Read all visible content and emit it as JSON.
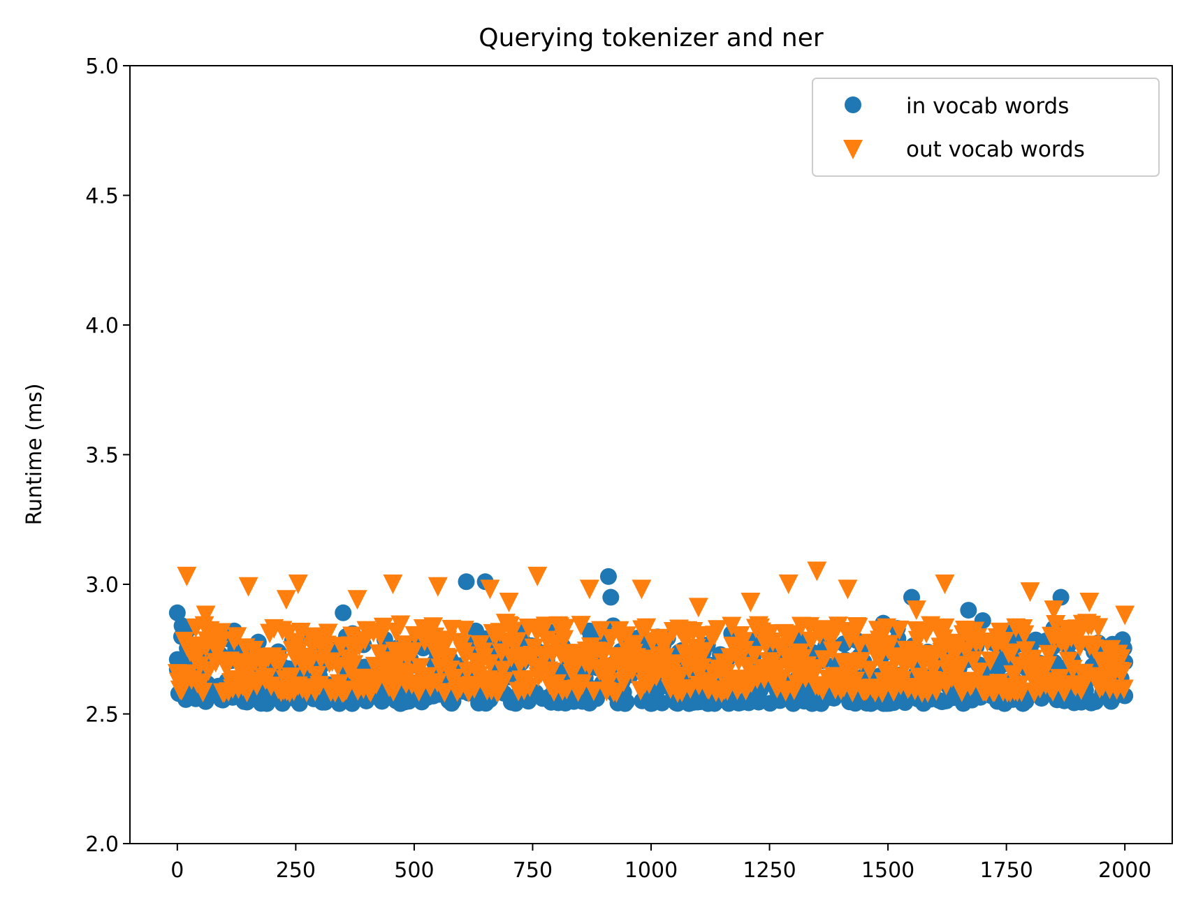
{
  "chart_data": {
    "type": "scatter",
    "title": "Querying tokenizer and ner",
    "xlabel": "",
    "ylabel": "Runtime (ms)",
    "xlim": [
      -100,
      2100
    ],
    "ylim": [
      2.0,
      5.0
    ],
    "xticks": [
      0,
      250,
      500,
      750,
      1000,
      1250,
      1500,
      1750,
      2000
    ],
    "xtick_labels": [
      "0",
      "250",
      "500",
      "750",
      "1000",
      "1250",
      "1500",
      "1750",
      "2000"
    ],
    "yticks": [
      2.0,
      2.5,
      3.0,
      3.5,
      4.0,
      4.5,
      5.0
    ],
    "ytick_labels": [
      "2.0",
      "2.5",
      "3.0",
      "3.5",
      "4.0",
      "4.5",
      "5.0"
    ],
    "grid": false,
    "legend": {
      "position": "top-right",
      "entries": [
        {
          "label": "in vocab words",
          "marker": "circle",
          "color": "#1f77b4"
        },
        {
          "label": "out vocab words",
          "marker": "triangle-down",
          "color": "#ff7f0e"
        }
      ]
    },
    "series": [
      {
        "name": "in vocab words",
        "marker": "circle",
        "color": "#1f77b4",
        "x_range": [
          0,
          2000
        ],
        "typical_range": [
          2.54,
          2.8
        ],
        "points": [
          [
            0,
            2.89
          ],
          [
            0,
            2.71
          ],
          [
            10,
            2.84
          ],
          [
            20,
            2.82
          ],
          [
            50,
            2.57
          ],
          [
            120,
            2.82
          ],
          [
            350,
            2.89
          ],
          [
            370,
            2.81
          ],
          [
            610,
            3.01
          ],
          [
            650,
            3.01
          ],
          [
            630,
            2.82
          ],
          [
            720,
            2.82
          ],
          [
            800,
            2.82
          ],
          [
            870,
            2.82
          ],
          [
            910,
            3.03
          ],
          [
            915,
            2.95
          ],
          [
            920,
            2.84
          ],
          [
            1000,
            2.54
          ],
          [
            1080,
            2.54
          ],
          [
            1120,
            2.54
          ],
          [
            1170,
            2.81
          ],
          [
            1300,
            2.54
          ],
          [
            1340,
            2.54
          ],
          [
            1490,
            2.85
          ],
          [
            1520,
            2.83
          ],
          [
            1550,
            2.95
          ],
          [
            1670,
            2.9
          ],
          [
            1700,
            2.86
          ],
          [
            1765,
            2.83
          ],
          [
            1865,
            2.95
          ],
          [
            1850,
            2.83
          ],
          [
            2000,
            2.57
          ],
          [
            2000,
            2.7
          ]
        ]
      },
      {
        "name": "out vocab words",
        "marker": "triangle-down",
        "color": "#ff7f0e",
        "x_range": [
          0,
          2000
        ],
        "typical_range": [
          2.58,
          2.85
        ],
        "points": [
          [
            20,
            3.03
          ],
          [
            150,
            2.99
          ],
          [
            255,
            3.0
          ],
          [
            455,
            3.0
          ],
          [
            550,
            2.99
          ],
          [
            660,
            2.98
          ],
          [
            760,
            3.03
          ],
          [
            870,
            2.98
          ],
          [
            980,
            2.98
          ],
          [
            1290,
            3.0
          ],
          [
            1350,
            3.05
          ],
          [
            1415,
            2.98
          ],
          [
            1620,
            3.0
          ],
          [
            1800,
            2.97
          ],
          [
            1925,
            2.93
          ],
          [
            2000,
            2.88
          ],
          [
            1100,
            2.91
          ],
          [
            1210,
            2.93
          ],
          [
            380,
            2.94
          ],
          [
            230,
            2.94
          ],
          [
            700,
            2.93
          ],
          [
            1560,
            2.9
          ],
          [
            1850,
            2.9
          ],
          [
            60,
            2.88
          ]
        ]
      }
    ]
  }
}
